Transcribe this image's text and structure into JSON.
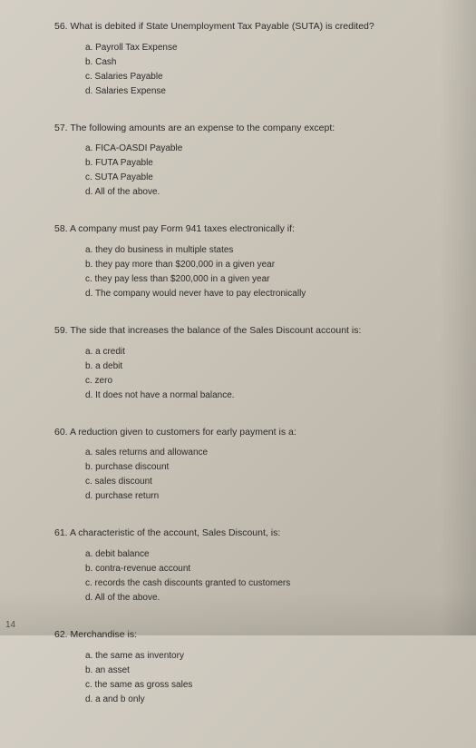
{
  "questions": [
    {
      "number": "56.",
      "stem": "What is debited if State Unemployment Tax Payable (SUTA) is credited?",
      "options": [
        "a. Payroll Tax Expense",
        "b. Cash",
        "c. Salaries Payable",
        "d. Salaries Expense"
      ]
    },
    {
      "number": "57.",
      "stem": "The following amounts are an expense to the company except:",
      "options": [
        "a. FICA-OASDI Payable",
        "b. FUTA Payable",
        "c. SUTA Payable",
        "d. All of the above."
      ]
    },
    {
      "number": "58.",
      "stem": "A company must pay Form 941 taxes electronically if:",
      "options": [
        "a. they do business in multiple states",
        "b. they pay more than $200,000 in a given year",
        "c. they pay less than $200,000 in a given year",
        "d. The company would never have to pay electronically"
      ]
    },
    {
      "number": "59.",
      "stem": "The side that increases the balance of the Sales Discount account is:",
      "options": [
        "a. a credit",
        "b. a debit",
        "c. zero",
        "d. It does not have a normal balance."
      ]
    },
    {
      "number": "60.",
      "stem": "A reduction given to customers for early payment is a:",
      "options": [
        "a. sales returns and allowance",
        "b. purchase discount",
        "c. sales discount",
        "d. purchase return"
      ]
    },
    {
      "number": "61.",
      "stem": "A characteristic of the account, Sales Discount, is:",
      "options": [
        "a. debit balance",
        "b. contra-revenue account",
        "c. records the cash discounts granted to customers",
        "d. All of the above."
      ]
    },
    {
      "number": "62.",
      "stem": "Merchandise is:",
      "options": [
        "a. the same as inventory",
        "b. an asset",
        "c. the same as gross sales",
        "d. a and b only"
      ]
    }
  ],
  "page_number": "14"
}
